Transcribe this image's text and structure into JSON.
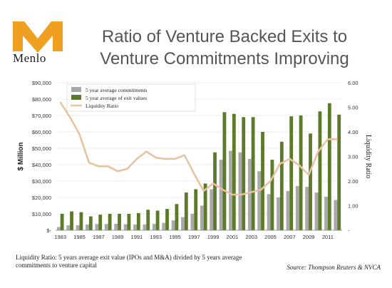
{
  "brand": {
    "name": "Menlo"
  },
  "title_lines": [
    "Ratio of Venture Backed Exits to",
    "Venture Commitments Improving"
  ],
  "footnote": "Liquidity Ratio: 5 years average exit value (IPOs and M&A) divided by 5 years average commitments to venture capital",
  "source": "Source: Thompson Reuters & NVCA",
  "colors": {
    "commitments": "#a9a9a9",
    "exits": "#5c7a2a",
    "ratio_line": "#e8c3a0",
    "brand": "#f0a020"
  },
  "chart_data": {
    "type": "bar",
    "categories": [
      "1983",
      "1984",
      "1985",
      "1986",
      "1987",
      "1988",
      "1989",
      "1990",
      "1991",
      "1992",
      "1993",
      "1994",
      "1995",
      "1996",
      "1997",
      "1998",
      "1999",
      "2000",
      "2001",
      "2002",
      "2003",
      "2004",
      "2005",
      "2006",
      "2007",
      "2008",
      "2009",
      "2010",
      "2011",
      "2012"
    ],
    "x_tick_labels": [
      "1983",
      "1985",
      "1987",
      "1989",
      "1991",
      "1993",
      "1995",
      "1997",
      "1999",
      "2001",
      "2003",
      "2005",
      "2007",
      "2009",
      "2011"
    ],
    "series": [
      {
        "name": "5 year average commitments",
        "axis": "left",
        "values": [
          2000,
          3000,
          3000,
          3500,
          3800,
          3800,
          3900,
          3700,
          3500,
          3500,
          3900,
          4500,
          6000,
          8000,
          10000,
          15000,
          25000,
          43000,
          48500,
          47500,
          43500,
          36000,
          22000,
          20000,
          24000,
          27000,
          26500,
          23000,
          20500,
          18500
        ]
      },
      {
        "name": "5 year average of exit values",
        "axis": "left",
        "values": [
          10000,
          11500,
          11000,
          8500,
          9500,
          10000,
          10000,
          10000,
          10500,
          12500,
          12000,
          13000,
          16000,
          23000,
          25000,
          28500,
          47500,
          72000,
          71000,
          69000,
          69000,
          60000,
          43000,
          54000,
          69500,
          70000,
          59000,
          72500,
          77500,
          70500
        ]
      },
      {
        "name": "Liquidity Ratio",
        "axis": "right",
        "type": "line",
        "values": [
          5.2,
          4.6,
          3.9,
          2.75,
          2.6,
          2.6,
          2.4,
          2.5,
          2.9,
          3.2,
          2.95,
          2.9,
          2.9,
          3.05,
          2.3,
          1.6,
          1.9,
          1.65,
          1.45,
          1.45,
          1.55,
          1.65,
          2.0,
          2.7,
          2.9,
          2.65,
          2.25,
          3.2,
          3.7,
          3.7
        ]
      }
    ],
    "y_left": {
      "label": "$ Million",
      "min": 0,
      "max": 90000,
      "tick_labels": [
        "$-",
        "$10,000",
        "$20,000",
        "$30,000",
        "$40,000",
        "$50,000",
        "$60,000",
        "$70,000",
        "$80,000",
        "$90,000"
      ]
    },
    "y_right": {
      "label": "Liquidity Ratio",
      "min": 0,
      "max": 6,
      "tick_labels": [
        "-",
        "1.00",
        "2.00",
        "3.00",
        "4.00",
        "5.00",
        "6.00"
      ]
    },
    "grid": true,
    "legend_position": "top-left"
  }
}
